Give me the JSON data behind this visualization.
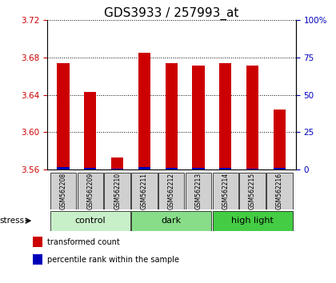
{
  "title": "GDS3933 / 257993_at",
  "samples": [
    "GSM562208",
    "GSM562209",
    "GSM562210",
    "GSM562211",
    "GSM562212",
    "GSM562213",
    "GSM562214",
    "GSM562215",
    "GSM562216"
  ],
  "red_values": [
    3.674,
    3.643,
    3.573,
    3.685,
    3.674,
    3.671,
    3.674,
    3.671,
    3.624
  ],
  "blue_values": [
    3.563,
    3.562,
    3.561,
    3.563,
    3.562,
    3.562,
    3.562,
    3.561,
    3.562
  ],
  "y_min": 3.56,
  "y_max": 3.72,
  "y_ticks": [
    3.56,
    3.6,
    3.64,
    3.68,
    3.72
  ],
  "right_y_ticks": [
    0,
    25,
    50,
    75,
    100
  ],
  "groups": [
    {
      "label": "control",
      "start": 0,
      "end": 3,
      "color": "#c8f0c8"
    },
    {
      "label": "dark",
      "start": 3,
      "end": 6,
      "color": "#88dd88"
    },
    {
      "label": "high light",
      "start": 6,
      "end": 9,
      "color": "#44cc44"
    }
  ],
  "stress_label": "stress",
  "legend": [
    {
      "label": "transformed count",
      "color": "#cc0000"
    },
    {
      "label": "percentile rank within the sample",
      "color": "#0000bb"
    }
  ],
  "bar_width": 0.45,
  "left_color": "#cc0000",
  "right_color": "#0000bb",
  "title_fontsize": 11,
  "tick_fontsize": 7.5,
  "sample_fontsize": 5.5,
  "group_fontsize": 8,
  "legend_fontsize": 7
}
